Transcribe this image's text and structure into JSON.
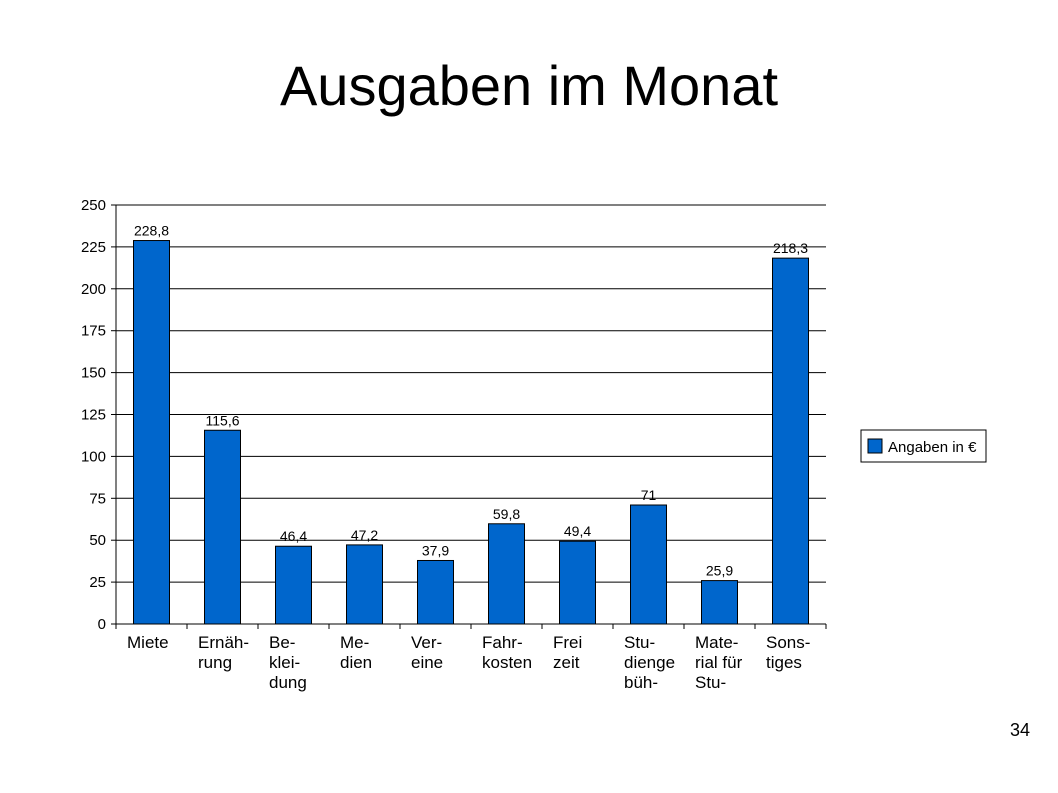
{
  "slide": {
    "title": "Ausgaben im Monat",
    "page_number": "34"
  },
  "chart_data": {
    "type": "bar",
    "categories": [
      [
        "Miete"
      ],
      [
        "Ernäh-",
        "rung"
      ],
      [
        "Be-",
        "klei-",
        "dung"
      ],
      [
        "Me-",
        "dien"
      ],
      [
        "Ver-",
        "eine"
      ],
      [
        "Fahr-",
        "kosten"
      ],
      [
        "Frei",
        "zeit"
      ],
      [
        "Stu-",
        "dienge",
        "büh-"
      ],
      [
        "Mate-",
        "rial für",
        "Stu-"
      ],
      [
        "Sons-",
        "tiges"
      ]
    ],
    "series": [
      {
        "name": "Angaben in €",
        "values": [
          228.8,
          115.6,
          46.4,
          47.2,
          37.9,
          59.8,
          49.4,
          71,
          25.9,
          218.3
        ],
        "data_labels": [
          "228,8",
          "115,6",
          "46,4",
          "47,2",
          "37,9",
          "59,8",
          "49,4",
          "71",
          "25,9",
          "218,3"
        ]
      }
    ],
    "ylim": [
      0,
      250
    ],
    "yticks": [
      0,
      25,
      50,
      75,
      100,
      125,
      150,
      175,
      200,
      225,
      250
    ],
    "grid": true,
    "legend_position": "right",
    "colors": {
      "bar": "#0066CC",
      "grid": "#000000"
    }
  }
}
